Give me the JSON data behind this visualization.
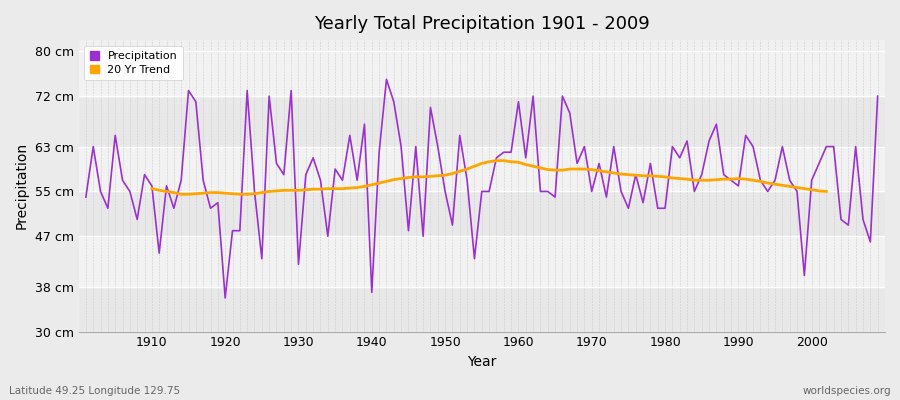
{
  "title": "Yearly Total Precipitation 1901 - 2009",
  "xlabel": "Year",
  "ylabel": "Precipitation",
  "lat_lon_label": "Latitude 49.25 Longitude 129.75",
  "watermark": "worldspecies.org",
  "ylim": [
    30,
    82
  ],
  "yticks": [
    30,
    38,
    47,
    55,
    63,
    72,
    80
  ],
  "ytick_labels": [
    "30 cm",
    "38 cm",
    "47 cm",
    "55 cm",
    "63 cm",
    "72 cm",
    "80 cm"
  ],
  "xlim": [
    1900,
    2010
  ],
  "xticks": [
    1910,
    1920,
    1930,
    1940,
    1950,
    1960,
    1970,
    1980,
    1990,
    2000
  ],
  "precip_color": "#9B30D0",
  "trend_color": "#FFA500",
  "bg_color": "#EBEBEB",
  "plot_bg_color": "#F0F0F0",
  "grid_color_h": "#FFFFFF",
  "grid_color_v": "#CCCCCC",
  "years": [
    1901,
    1902,
    1903,
    1904,
    1905,
    1906,
    1907,
    1908,
    1909,
    1910,
    1911,
    1912,
    1913,
    1914,
    1915,
    1916,
    1917,
    1918,
    1919,
    1920,
    1921,
    1922,
    1923,
    1924,
    1925,
    1926,
    1927,
    1928,
    1929,
    1930,
    1931,
    1932,
    1933,
    1934,
    1935,
    1936,
    1937,
    1938,
    1939,
    1940,
    1941,
    1942,
    1943,
    1944,
    1945,
    1946,
    1947,
    1948,
    1949,
    1950,
    1951,
    1952,
    1953,
    1954,
    1955,
    1956,
    1957,
    1958,
    1959,
    1960,
    1961,
    1962,
    1963,
    1964,
    1965,
    1966,
    1967,
    1968,
    1969,
    1970,
    1971,
    1972,
    1973,
    1974,
    1975,
    1976,
    1977,
    1978,
    1979,
    1980,
    1981,
    1982,
    1983,
    1984,
    1985,
    1986,
    1987,
    1988,
    1989,
    1990,
    1991,
    1992,
    1993,
    1994,
    1995,
    1996,
    1997,
    1998,
    1999,
    2000,
    2001,
    2002,
    2003,
    2004,
    2005,
    2006,
    2007,
    2008,
    2009
  ],
  "precip": [
    54,
    63,
    55,
    52,
    65,
    57,
    55,
    50,
    58,
    56,
    44,
    56,
    52,
    57,
    73,
    71,
    57,
    52,
    53,
    36,
    48,
    48,
    73,
    55,
    43,
    72,
    60,
    58,
    73,
    42,
    58,
    61,
    57,
    47,
    59,
    57,
    65,
    57,
    67,
    37,
    62,
    75,
    71,
    63,
    48,
    63,
    47,
    70,
    63,
    55,
    49,
    65,
    57,
    43,
    55,
    55,
    61,
    62,
    62,
    71,
    61,
    72,
    55,
    55,
    54,
    72,
    69,
    60,
    63,
    55,
    60,
    54,
    63,
    55,
    52,
    58,
    53,
    60,
    52,
    52,
    63,
    61,
    64,
    55,
    58,
    64,
    67,
    58,
    57,
    56,
    65,
    63,
    57,
    55,
    57,
    63,
    57,
    55,
    40,
    57,
    60,
    63,
    63,
    50,
    49,
    63,
    50,
    46,
    72
  ],
  "trend": [
    null,
    null,
    null,
    null,
    null,
    null,
    null,
    null,
    null,
    55.5,
    55.2,
    55.0,
    54.8,
    54.5,
    54.5,
    54.6,
    54.7,
    54.8,
    54.8,
    54.7,
    54.6,
    54.5,
    54.5,
    54.6,
    54.8,
    55.0,
    55.1,
    55.2,
    55.2,
    55.2,
    55.3,
    55.4,
    55.4,
    55.5,
    55.5,
    55.5,
    55.6,
    55.7,
    55.9,
    56.2,
    56.5,
    56.8,
    57.1,
    57.3,
    57.5,
    57.6,
    57.6,
    57.7,
    57.8,
    57.9,
    58.2,
    58.6,
    59.0,
    59.5,
    60.0,
    60.3,
    60.5,
    60.5,
    60.3,
    60.2,
    59.8,
    59.5,
    59.2,
    58.9,
    58.8,
    58.8,
    59.0,
    59.0,
    59.0,
    58.9,
    58.7,
    58.5,
    58.3,
    58.1,
    58.0,
    57.9,
    57.8,
    57.8,
    57.7,
    57.6,
    57.4,
    57.3,
    57.2,
    57.0,
    57.0,
    57.0,
    57.1,
    57.2,
    57.2,
    57.3,
    57.2,
    57.0,
    56.8,
    56.5,
    56.3,
    56.1,
    55.9,
    55.7,
    55.5,
    55.3,
    55.1,
    55.0,
    null,
    null,
    null,
    null,
    null,
    null,
    null
  ]
}
